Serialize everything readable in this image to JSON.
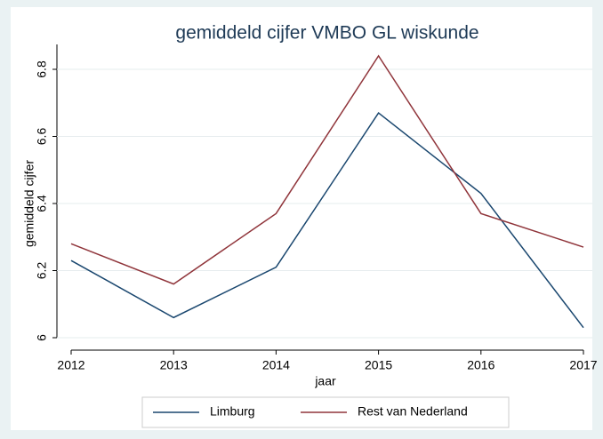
{
  "chart_data": {
    "type": "line",
    "title": "gemiddeld cijfer VMBO GL wiskunde",
    "x_label": "jaar",
    "y_label": "gemiddeld cijfer",
    "x": [
      2012,
      2013,
      2014,
      2015,
      2016,
      2017
    ],
    "xlim": [
      2012,
      2017
    ],
    "xticks": [
      2012,
      2013,
      2014,
      2015,
      2016,
      2017
    ],
    "ylim": [
      6,
      6.8
    ],
    "yticks": [
      6,
      6.2,
      6.4,
      6.6,
      6.8
    ],
    "grid": true,
    "legend": "bottom",
    "series": [
      {
        "name": "Limburg",
        "color": "#1a476f",
        "values": [
          6.23,
          6.06,
          6.21,
          6.67,
          6.43,
          6.03
        ]
      },
      {
        "name": "Rest van Nederland",
        "color": "#90353b",
        "values": [
          6.28,
          6.16,
          6.37,
          6.84,
          6.37,
          6.27
        ]
      }
    ]
  }
}
